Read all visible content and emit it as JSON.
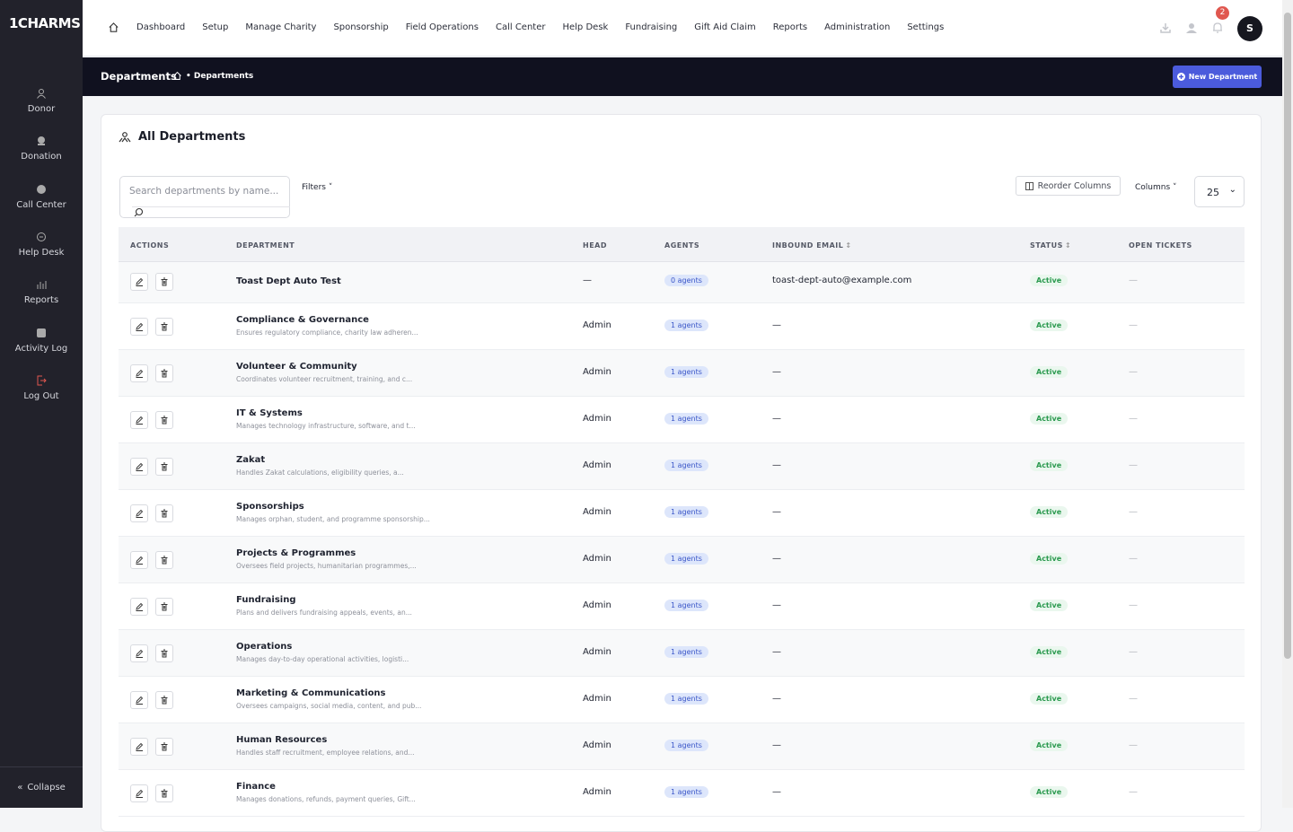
{
  "sidebar": {
    "logo": "1CHARMS",
    "items": [
      "Donor",
      "Donation",
      "Call Center",
      "Help Desk",
      "Reports",
      "Activity Log",
      "Log Out"
    ],
    "collapse": "Collapse"
  },
  "topnav": {
    "items": [
      "Dashboard",
      "Setup",
      "Manage Charity",
      "Sponsorship",
      "Field Operations",
      "Call Center",
      "Help Desk",
      "Fundraising",
      "Gift Aid Claim",
      "Reports",
      "Administration",
      "Settings"
    ],
    "notifications": "2",
    "avatar": "S"
  },
  "header": {
    "title": "Departments",
    "breadcrumb": "• Departments",
    "new_button": "New Department"
  },
  "card": {
    "title": "All Departments",
    "search_placeholder": "Search departments by name...",
    "filters": "Filters",
    "reorder_columns": "Reorder Columns",
    "columns": "Columns",
    "page_size": "25"
  },
  "table": {
    "headers": [
      "ACTIONS",
      "DEPARTMENT",
      "HEAD",
      "AGENTS",
      "INBOUND EMAIL",
      "STATUS",
      "OPEN TICKETS"
    ],
    "rows": [
      {
        "name": "Toast Dept Auto Test",
        "head": "—",
        "agents": "0 agents",
        "inbound_email": "toast-dept-auto@example.com",
        "status": "Active",
        "open_tickets": "—"
      },
      {
        "name": "Compliance & Governance",
        "description": "Ensures regulatory compliance, charity law adheren...",
        "head": "Admin",
        "agents": "1 agents",
        "inbound_email": "—",
        "status": "Active",
        "open_tickets": "—"
      },
      {
        "name": "Volunteer & Community",
        "description": "Coordinates volunteer recruitment, training, and c...",
        "head": "Admin",
        "agents": "1 agents",
        "inbound_email": "—",
        "status": "Active",
        "open_tickets": "—"
      },
      {
        "name": "IT & Systems",
        "description": "Manages technology infrastructure, software, and t...",
        "head": "Admin",
        "agents": "1 agents",
        "inbound_email": "—",
        "status": "Active",
        "open_tickets": "—"
      },
      {
        "name": "Zakat",
        "description": "Handles Zakat calculations, eligibility queries, a...",
        "head": "Admin",
        "agents": "1 agents",
        "inbound_email": "—",
        "status": "Active",
        "open_tickets": "—"
      },
      {
        "name": "Sponsorships",
        "description": "Manages orphan, student, and programme sponsorship...",
        "head": "Admin",
        "agents": "1 agents",
        "inbound_email": "—",
        "status": "Active",
        "open_tickets": "—"
      },
      {
        "name": "Projects & Programmes",
        "description": "Oversees field projects, humanitarian programmes,...",
        "head": "Admin",
        "agents": "1 agents",
        "inbound_email": "—",
        "status": "Active",
        "open_tickets": "—"
      },
      {
        "name": "Fundraising",
        "description": "Plans and delivers fundraising appeals, events, an...",
        "head": "Admin",
        "agents": "1 agents",
        "inbound_email": "—",
        "status": "Active",
        "open_tickets": "—"
      },
      {
        "name": "Operations",
        "description": "Manages day-to-day operational activities, logisti...",
        "head": "Admin",
        "agents": "1 agents",
        "inbound_email": "—",
        "status": "Active",
        "open_tickets": "—"
      },
      {
        "name": "Marketing & Communications",
        "description": "Oversees campaigns, social media, content, and pub...",
        "head": "Admin",
        "agents": "1 agents",
        "inbound_email": "—",
        "status": "Active",
        "open_tickets": "—"
      },
      {
        "name": "Human Resources",
        "description": "Handles staff recruitment, employee relations, and...",
        "head": "Admin",
        "agents": "1 agents",
        "inbound_email": "—",
        "status": "Active",
        "open_tickets": "—"
      },
      {
        "name": "Finance",
        "description": "Manages donations, refunds, payment queries, Gift...",
        "head": "Admin",
        "agents": "1 agents",
        "inbound_email": "—",
        "status": "Active",
        "open_tickets": "—"
      }
    ]
  }
}
